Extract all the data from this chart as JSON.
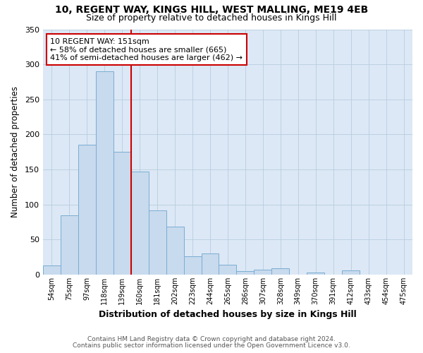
{
  "title1": "10, REGENT WAY, KINGS HILL, WEST MALLING, ME19 4EB",
  "title2": "Size of property relative to detached houses in Kings Hill",
  "xlabel": "Distribution of detached houses by size in Kings Hill",
  "ylabel": "Number of detached properties",
  "bar_labels": [
    "54sqm",
    "75sqm",
    "97sqm",
    "118sqm",
    "139sqm",
    "160sqm",
    "181sqm",
    "202sqm",
    "223sqm",
    "244sqm",
    "265sqm",
    "286sqm",
    "307sqm",
    "328sqm",
    "349sqm",
    "370sqm",
    "391sqm",
    "412sqm",
    "433sqm",
    "454sqm",
    "475sqm"
  ],
  "bar_values": [
    13,
    85,
    185,
    290,
    175,
    147,
    92,
    69,
    26,
    30,
    14,
    5,
    7,
    9,
    0,
    3,
    0,
    6,
    0,
    0,
    0
  ],
  "bar_color": "#c8daed",
  "bar_edgecolor": "#7aadd4",
  "vline_x": 4.5,
  "vline_color": "#cc0000",
  "annotation_line1": "10 REGENT WAY: 151sqm",
  "annotation_line2": "← 58% of detached houses are smaller (665)",
  "annotation_line3": "41% of semi-detached houses are larger (462) →",
  "annotation_box_edgecolor": "#cc0000",
  "annotation_box_facecolor": "#ffffff",
  "ylim": [
    0,
    350
  ],
  "yticks": [
    0,
    50,
    100,
    150,
    200,
    250,
    300,
    350
  ],
  "footer1": "Contains HM Land Registry data © Crown copyright and database right 2024.",
  "footer2": "Contains public sector information licensed under the Open Government Licence v3.0.",
  "plot_bg_color": "#dce8f5",
  "fig_bg_color": "#ffffff"
}
